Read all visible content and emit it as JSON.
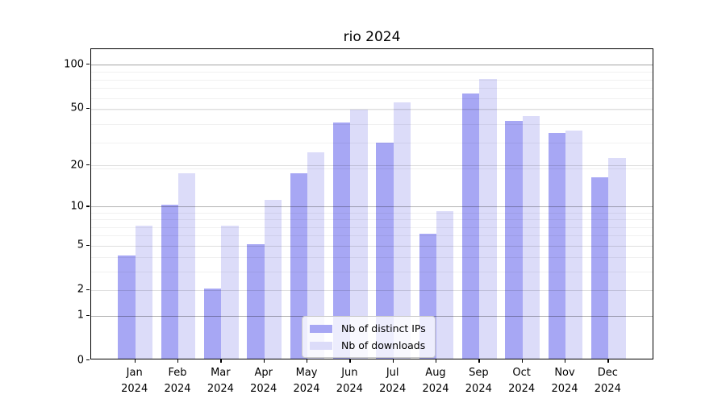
{
  "chart_data": {
    "type": "bar",
    "title": "rio 2024",
    "categories": [
      "Jan 2024",
      "Feb 2024",
      "Mar 2024",
      "Apr 2024",
      "May 2024",
      "Jun 2024",
      "Jul 2024",
      "Aug 2024",
      "Sep 2024",
      "Oct 2024",
      "Nov 2024",
      "Dec 2024"
    ],
    "series": [
      {
        "name": "Nb of distinct IPs",
        "color": "#a7a7f4",
        "values": [
          4,
          10,
          2,
          5,
          17,
          39,
          28,
          6,
          62,
          40,
          33,
          16
        ]
      },
      {
        "name": "Nb of downloads",
        "color": "#dcdcf9",
        "values": [
          7,
          17,
          7,
          11,
          24,
          48,
          54,
          9,
          78,
          43,
          34,
          22
        ]
      }
    ],
    "yscale": "log1p",
    "y_tick_values": [
      0,
      1,
      2,
      5,
      10,
      20,
      50,
      100
    ],
    "y_tick_labels": [
      "0",
      "1",
      "2",
      "5",
      "10",
      "20",
      "50",
      "100"
    ],
    "ylim": [
      0,
      127
    ],
    "grid": "both",
    "legend_position": "lower center"
  }
}
